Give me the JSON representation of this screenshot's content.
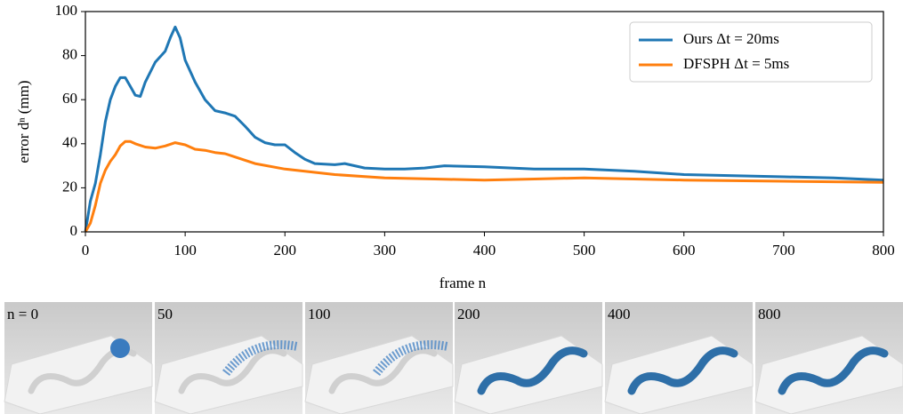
{
  "chart_data": {
    "type": "line",
    "y_label": "error dⁿ (mm)",
    "x_label": "frame n",
    "xlim": [
      0,
      800
    ],
    "xticks": [
      0,
      100,
      200,
      300,
      400,
      500,
      600,
      700,
      800
    ],
    "ylim": [
      0,
      100
    ],
    "yticks": [
      0,
      20,
      40,
      60,
      80,
      100
    ],
    "legend": "upper right",
    "series": [
      {
        "name": "Ours Δt = 20ms",
        "color": "#1f77b4",
        "x": [
          0,
          5,
          10,
          15,
          20,
          25,
          30,
          35,
          40,
          45,
          50,
          55,
          60,
          70,
          80,
          85,
          90,
          95,
          100,
          110,
          120,
          130,
          140,
          150,
          160,
          170,
          180,
          190,
          200,
          210,
          220,
          230,
          250,
          260,
          270,
          280,
          300,
          320,
          340,
          360,
          400,
          450,
          500,
          550,
          600,
          650,
          700,
          750,
          800
        ],
        "values": [
          0,
          14,
          22,
          35,
          50,
          60,
          66,
          70,
          70,
          66,
          62,
          61.5,
          68,
          77,
          82,
          88,
          93,
          88,
          78,
          68,
          60,
          55,
          54,
          52.5,
          48,
          43,
          40.5,
          39.5,
          39.5,
          36,
          33,
          31,
          30.5,
          31,
          30,
          29,
          28.5,
          28.5,
          29,
          30,
          29.5,
          28.5,
          28.5,
          27.5,
          26,
          25.5,
          25,
          24.5,
          23.5
        ]
      },
      {
        "name": "DFSPH Δt = 5ms",
        "color": "#ff7f0e",
        "x": [
          0,
          5,
          10,
          15,
          20,
          25,
          30,
          35,
          40,
          45,
          50,
          60,
          70,
          80,
          90,
          100,
          110,
          120,
          130,
          140,
          150,
          170,
          200,
          250,
          300,
          350,
          400,
          450,
          500,
          550,
          600,
          700,
          800
        ],
        "values": [
          0,
          4,
          12,
          22,
          28,
          32,
          35,
          39,
          41,
          41,
          40,
          38.5,
          38,
          39,
          40.5,
          39.5,
          37.5,
          37,
          36,
          35.5,
          34,
          31,
          28.5,
          26,
          24.5,
          24,
          23.5,
          24,
          24.5,
          24,
          23.5,
          23,
          22.5
        ]
      }
    ]
  },
  "snapshots": [
    {
      "label": "n = 0"
    },
    {
      "label": "50"
    },
    {
      "label": "100"
    },
    {
      "label": "200"
    },
    {
      "label": "400"
    },
    {
      "label": "800"
    }
  ]
}
